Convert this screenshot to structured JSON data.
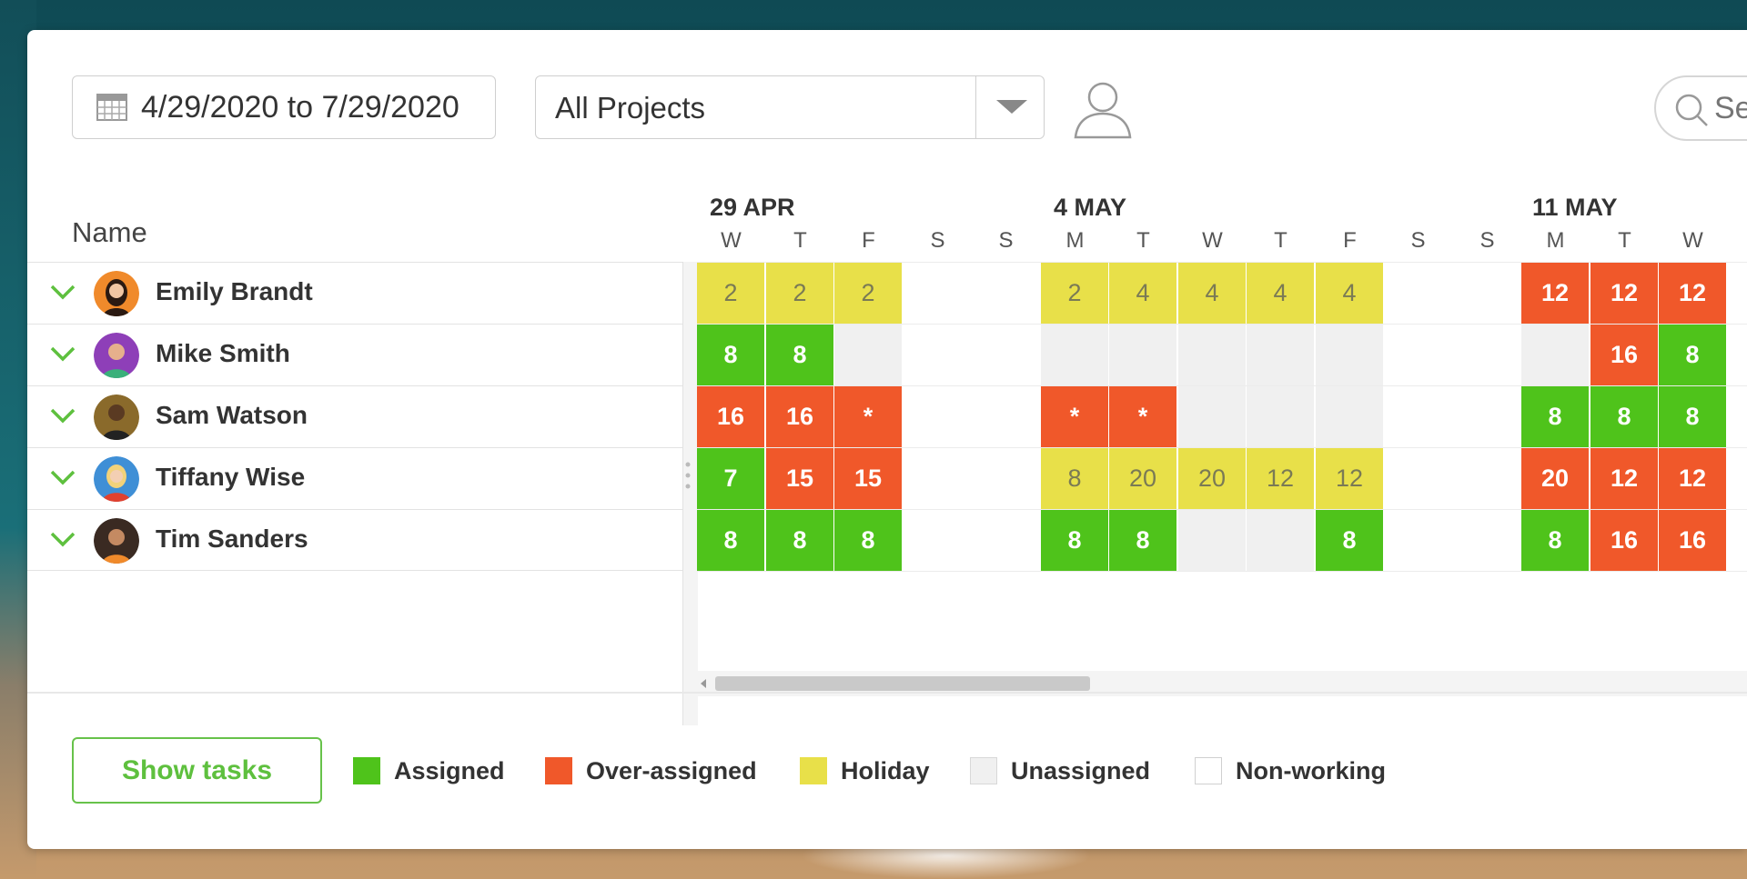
{
  "toolbar": {
    "date_range": "4/29/2020 to 7/29/2020",
    "project_filter": "All Projects",
    "search_placeholder": "Se"
  },
  "grid": {
    "name_header": "Name",
    "weeks": [
      "29 APR",
      "4 MAY",
      "11 MAY"
    ],
    "days": [
      "W",
      "T",
      "F",
      "S",
      "S",
      "M",
      "T",
      "W",
      "T",
      "F",
      "S",
      "S",
      "M",
      "T",
      "W"
    ]
  },
  "people": [
    {
      "name": "Emily Brandt",
      "cells": [
        {
          "v": "2",
          "s": "yellow"
        },
        {
          "v": "2",
          "s": "yellow"
        },
        {
          "v": "2",
          "s": "yellow"
        },
        {
          "v": "",
          "s": "none"
        },
        {
          "v": "",
          "s": "none"
        },
        {
          "v": "2",
          "s": "yellow"
        },
        {
          "v": "4",
          "s": "yellow"
        },
        {
          "v": "4",
          "s": "yellow"
        },
        {
          "v": "4",
          "s": "yellow"
        },
        {
          "v": "4",
          "s": "yellow"
        },
        {
          "v": "",
          "s": "none"
        },
        {
          "v": "",
          "s": "none"
        },
        {
          "v": "12",
          "s": "red"
        },
        {
          "v": "12",
          "s": "red"
        },
        {
          "v": "12",
          "s": "red"
        }
      ]
    },
    {
      "name": "Mike Smith",
      "cells": [
        {
          "v": "8",
          "s": "green"
        },
        {
          "v": "8",
          "s": "green"
        },
        {
          "v": "",
          "s": "gray"
        },
        {
          "v": "",
          "s": "none"
        },
        {
          "v": "",
          "s": "none"
        },
        {
          "v": "",
          "s": "gray"
        },
        {
          "v": "",
          "s": "gray"
        },
        {
          "v": "",
          "s": "gray"
        },
        {
          "v": "",
          "s": "gray"
        },
        {
          "v": "",
          "s": "gray"
        },
        {
          "v": "",
          "s": "none"
        },
        {
          "v": "",
          "s": "none"
        },
        {
          "v": "",
          "s": "gray"
        },
        {
          "v": "16",
          "s": "red"
        },
        {
          "v": "8",
          "s": "green"
        }
      ]
    },
    {
      "name": "Sam Watson",
      "cells": [
        {
          "v": "16",
          "s": "red"
        },
        {
          "v": "16",
          "s": "red"
        },
        {
          "v": "*",
          "s": "red"
        },
        {
          "v": "",
          "s": "none"
        },
        {
          "v": "",
          "s": "none"
        },
        {
          "v": "*",
          "s": "red"
        },
        {
          "v": "*",
          "s": "red"
        },
        {
          "v": "",
          "s": "gray"
        },
        {
          "v": "",
          "s": "gray"
        },
        {
          "v": "",
          "s": "gray"
        },
        {
          "v": "",
          "s": "none"
        },
        {
          "v": "",
          "s": "none"
        },
        {
          "v": "8",
          "s": "green"
        },
        {
          "v": "8",
          "s": "green"
        },
        {
          "v": "8",
          "s": "green"
        }
      ]
    },
    {
      "name": "Tiffany Wise",
      "cells": [
        {
          "v": "7",
          "s": "green"
        },
        {
          "v": "15",
          "s": "red"
        },
        {
          "v": "15",
          "s": "red"
        },
        {
          "v": "",
          "s": "none"
        },
        {
          "v": "",
          "s": "none"
        },
        {
          "v": "8",
          "s": "yellow"
        },
        {
          "v": "20",
          "s": "yellow"
        },
        {
          "v": "20",
          "s": "yellow"
        },
        {
          "v": "12",
          "s": "yellow"
        },
        {
          "v": "12",
          "s": "yellow"
        },
        {
          "v": "",
          "s": "none"
        },
        {
          "v": "",
          "s": "none"
        },
        {
          "v": "20",
          "s": "red"
        },
        {
          "v": "12",
          "s": "red"
        },
        {
          "v": "12",
          "s": "red"
        }
      ]
    },
    {
      "name": "Tim Sanders",
      "cells": [
        {
          "v": "8",
          "s": "green"
        },
        {
          "v": "8",
          "s": "green"
        },
        {
          "v": "8",
          "s": "green"
        },
        {
          "v": "",
          "s": "none"
        },
        {
          "v": "",
          "s": "none"
        },
        {
          "v": "8",
          "s": "green"
        },
        {
          "v": "8",
          "s": "green"
        },
        {
          "v": "",
          "s": "gray"
        },
        {
          "v": "",
          "s": "gray"
        },
        {
          "v": "8",
          "s": "green"
        },
        {
          "v": "",
          "s": "none"
        },
        {
          "v": "",
          "s": "none"
        },
        {
          "v": "8",
          "s": "green"
        },
        {
          "v": "16",
          "s": "red"
        },
        {
          "v": "16",
          "s": "red"
        }
      ]
    }
  ],
  "footer": {
    "show_tasks_label": "Show tasks",
    "legend": [
      {
        "label": "Assigned",
        "color": "#4fc31b"
      },
      {
        "label": "Over-assigned",
        "color": "#f0582a"
      },
      {
        "label": "Holiday",
        "color": "#e8e049"
      },
      {
        "label": "Unassigned",
        "color": "#f0f0f0"
      },
      {
        "label": "Non-working",
        "color": "#ffffff"
      }
    ]
  }
}
